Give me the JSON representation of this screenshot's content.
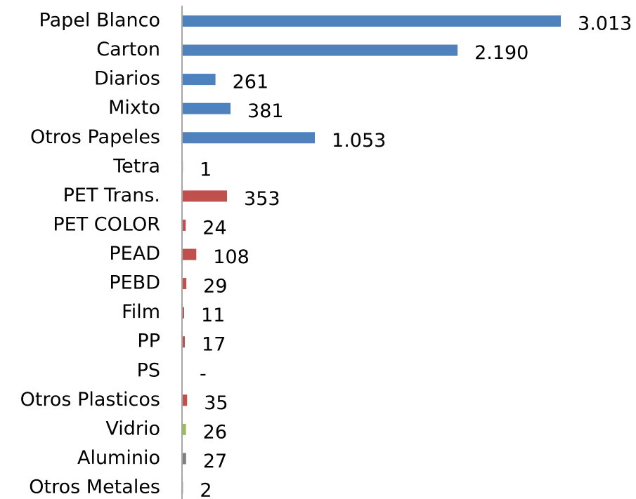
{
  "chart_data": {
    "type": "barh",
    "categories": [
      "Papel Blanco",
      "Carton",
      "Diarios",
      "Mixto",
      "Otros Papeles",
      "Tetra",
      "PET Trans.",
      "PET COLOR",
      "PEAD",
      "PEBD",
      "Film",
      "PP",
      "PS",
      "Otros Plasticos",
      "Vidrio",
      "Aluminio",
      "Otros Metales"
    ],
    "values": [
      3013,
      2190,
      261,
      381,
      1053,
      1,
      353,
      24,
      108,
      29,
      11,
      17,
      0,
      35,
      26,
      27,
      2
    ],
    "value_labels": [
      "3.013",
      "2.190",
      "261",
      "381",
      "1.053",
      "1",
      "353",
      "24",
      "108",
      "29",
      "11",
      "17",
      "-",
      "35",
      "26",
      "27",
      "2"
    ],
    "colors": [
      "#4f81bd",
      "#4f81bd",
      "#4f81bd",
      "#4f81bd",
      "#4f81bd",
      "#4f81bd",
      "#c0504d",
      "#c0504d",
      "#c0504d",
      "#c0504d",
      "#c0504d",
      "#c0504d",
      "#c0504d",
      "#c0504d",
      "#9bbb59",
      "#7f7f7f",
      "#7f7f7f"
    ],
    "xlim": [
      0,
      3500
    ]
  }
}
